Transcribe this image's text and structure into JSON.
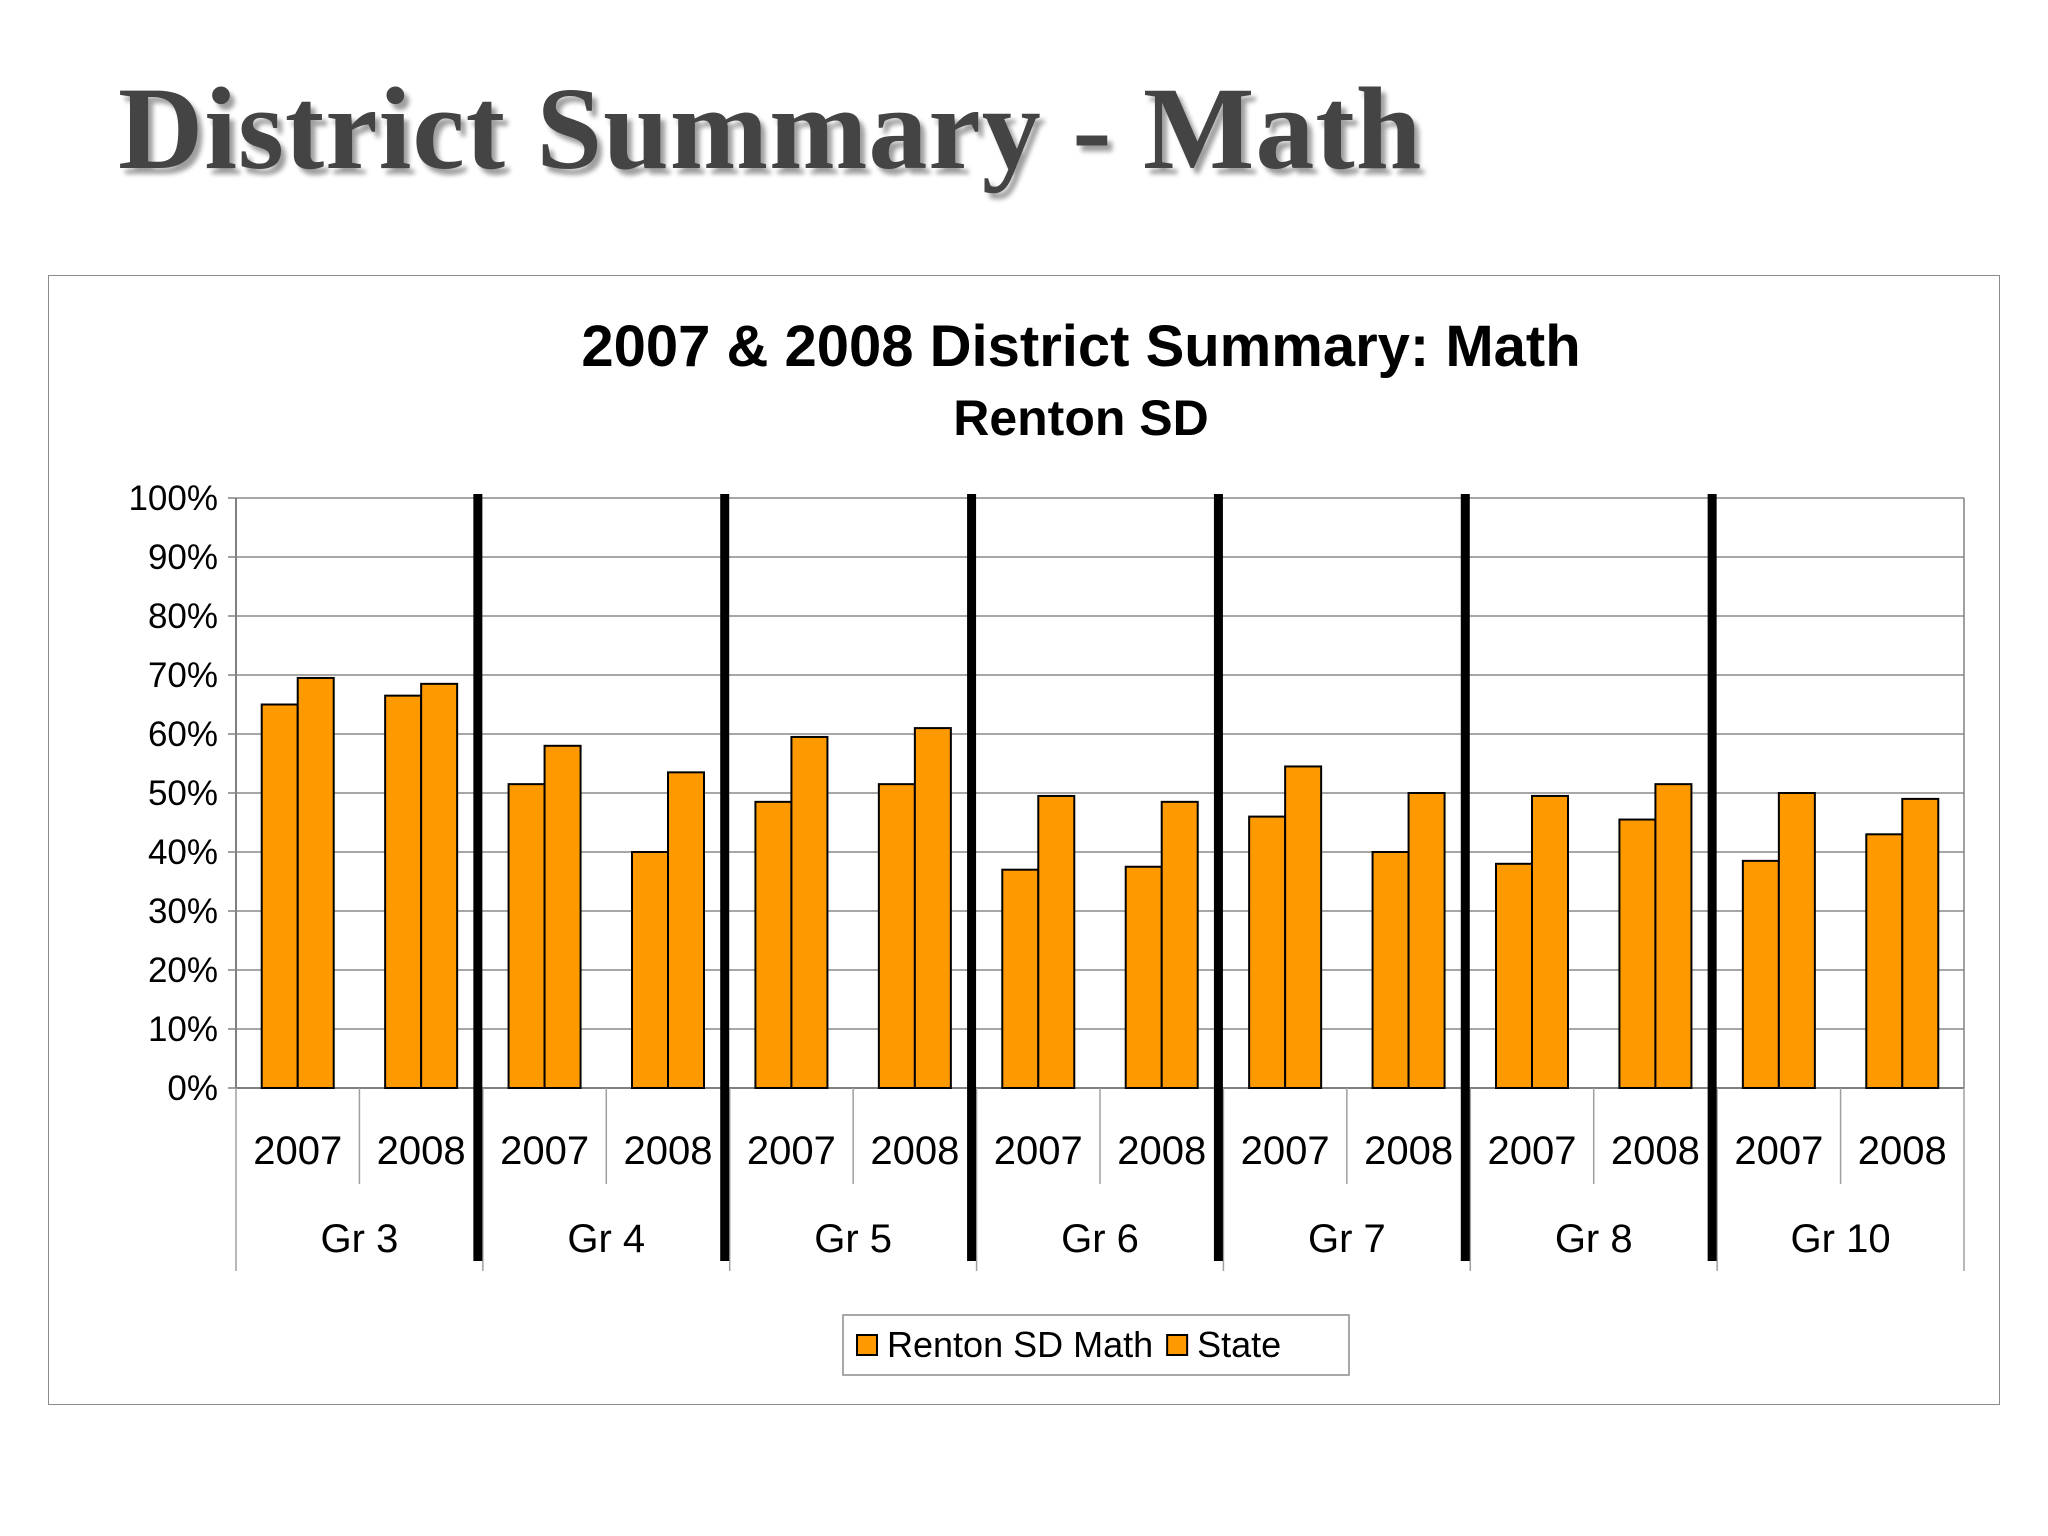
{
  "slide": {
    "title": "District Summary - Math"
  },
  "chart_data": {
    "type": "bar",
    "title": "2007 & 2008 District Summary: Math",
    "subtitle": "Renton SD",
    "ylim": [
      0,
      100
    ],
    "y_ticks": [
      "0%",
      "10%",
      "20%",
      "30%",
      "40%",
      "50%",
      "60%",
      "70%",
      "80%",
      "90%",
      "100%"
    ],
    "y_unit": "%",
    "groups": [
      "Gr 3",
      "Gr 4",
      "Gr 5",
      "Gr 6",
      "Gr 7",
      "Gr 8",
      "Gr 10"
    ],
    "years": [
      "2007",
      "2008"
    ],
    "categories": [
      "Gr 3 2007",
      "Gr 3 2008",
      "Gr 4 2007",
      "Gr 4 2008",
      "Gr 5 2007",
      "Gr 5 2008",
      "Gr 6 2007",
      "Gr 6 2008",
      "Gr 7 2007",
      "Gr 7 2008",
      "Gr 8 2007",
      "Gr 8 2008",
      "Gr 10 2007",
      "Gr 10 2008"
    ],
    "series": [
      {
        "name": "Renton SD Math",
        "color": "#FF9900",
        "values": [
          65,
          66.5,
          51.5,
          40,
          48.5,
          51.5,
          37,
          37.5,
          46,
          40,
          38,
          45.5,
          38.5,
          43
        ]
      },
      {
        "name": "State",
        "color": "#FF9900",
        "values": [
          69.5,
          68.5,
          58,
          53.5,
          59.5,
          61,
          49.5,
          48.5,
          54.5,
          50,
          49.5,
          51.5,
          50,
          49
        ]
      }
    ],
    "grid": true,
    "legend": "bottom",
    "group_separators": true
  }
}
